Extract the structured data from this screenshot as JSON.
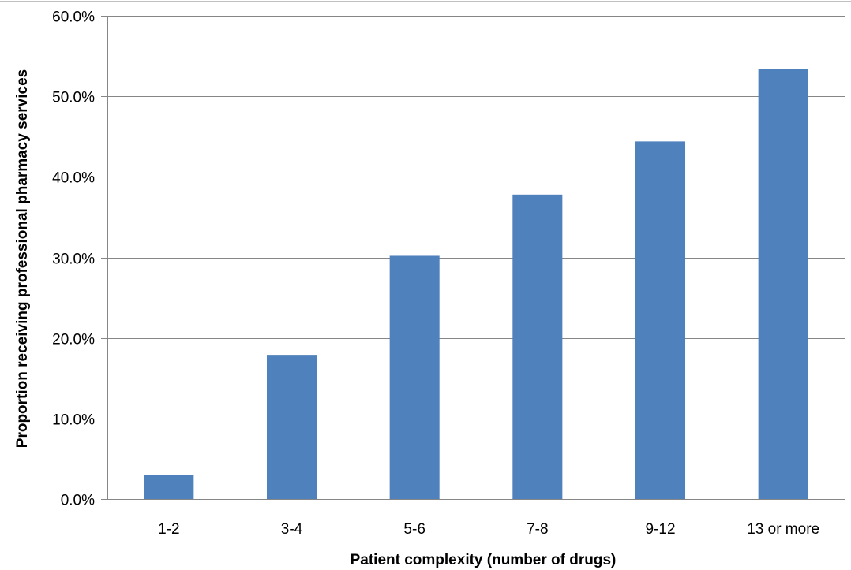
{
  "chart_data": {
    "type": "bar",
    "title": "",
    "xlabel": "Patient complexity (number of drugs)",
    "ylabel": "Proportion receiving professional pharmacy services",
    "categories": [
      "1-2",
      "3-4",
      "5-6",
      "7-8",
      "9-12",
      "13 or more"
    ],
    "values": [
      3.0,
      17.9,
      30.2,
      37.8,
      44.4,
      53.4
    ],
    "value_format": "percent",
    "ylim": [
      0,
      60
    ],
    "yticks": [
      0,
      10,
      20,
      30,
      40,
      50,
      60
    ],
    "ytick_labels": [
      "0.0%",
      "10.0%",
      "20.0%",
      "30.0%",
      "40.0%",
      "50.0%",
      "60.0%"
    ],
    "grid": true,
    "legend": "none",
    "bar_color": "#4F81BD",
    "grid_color": "#868686"
  }
}
